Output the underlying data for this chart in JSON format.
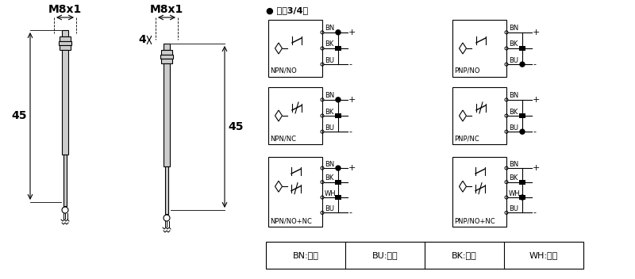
{
  "bg_color": "#ffffff",
  "line_color": "#000000",
  "title_dc": "● 直敵3/4线",
  "dim_M8x1": "M8x1",
  "dim_45": "45",
  "dim_4": "4",
  "legend_items": [
    "BN:棕色",
    "BU:兰色",
    "BK:黑色",
    "WH:白色"
  ],
  "circuit_labels_left": [
    "NPN/NO",
    "NPN/NC",
    "NPN/NO+NC"
  ],
  "circuit_labels_right": [
    "PNP/NO",
    "PNP/NC",
    "PNP/NO+NC"
  ],
  "wire_labels": [
    "BN",
    "BK",
    "BU",
    "WH"
  ],
  "font_size_tiny": 6,
  "font_size_small": 7,
  "font_size_medium": 8,
  "font_size_large": 10
}
